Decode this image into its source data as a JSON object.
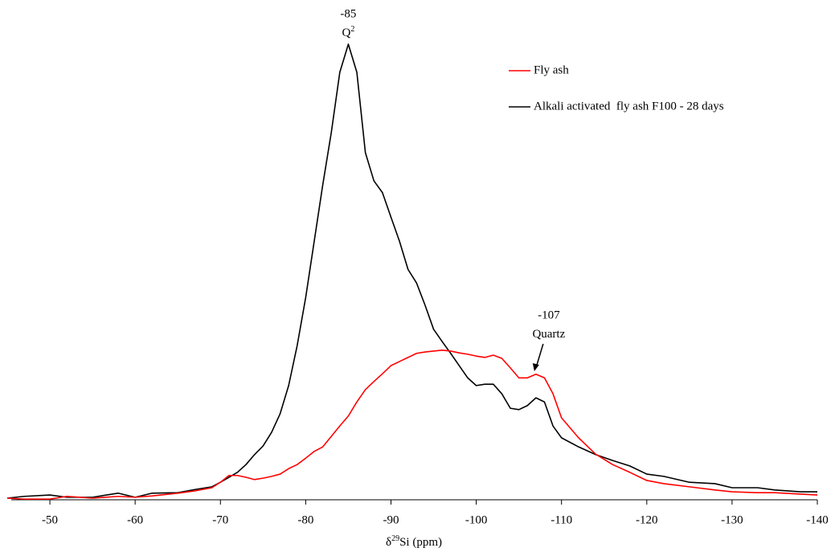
{
  "chart_data": {
    "type": "line",
    "x_label": {
      "prefix": "δ",
      "sup": "29",
      "main": "Si (ppm)"
    },
    "xlim": [
      -45,
      -140
    ],
    "xticks": [
      -50,
      -60,
      -70,
      -80,
      -90,
      -100,
      -110,
      -120,
      -130,
      -140
    ],
    "legend": "upper right",
    "x": [
      -45,
      -47,
      -50,
      -52,
      -55,
      -58,
      -60,
      -62,
      -65,
      -67,
      -69,
      -70,
      -71,
      -72,
      -73,
      -74,
      -75,
      -76,
      -77,
      -78,
      -79,
      -80,
      -81,
      -82,
      -83,
      -84,
      -85,
      -86,
      -87,
      -88,
      -89,
      -90,
      -91,
      -92,
      -93,
      -94,
      -95,
      -96,
      -97,
      -98,
      -99,
      -100,
      -101,
      -102,
      -103,
      -104,
      -105,
      -106,
      -107,
      -108,
      -109,
      -110,
      -112,
      -114,
      -116,
      -118,
      -120,
      -122,
      -125,
      -128,
      -130,
      -133,
      -135,
      -138,
      -140
    ],
    "series": [
      {
        "name": "Fly ash",
        "color": "#ff0000",
        "values": [
          0,
          -0.2,
          -0.2,
          0.4,
          0,
          0.4,
          0.2,
          0.5,
          1.1,
          1.6,
          2.3,
          3.5,
          5.0,
          5.0,
          4.6,
          4.1,
          4.4,
          4.8,
          5.3,
          6.5,
          7.4,
          8.8,
          10.3,
          11.3,
          13.6,
          15.9,
          18.1,
          21.2,
          23.9,
          25.7,
          27.4,
          29.2,
          30.1,
          31.0,
          31.9,
          32.2,
          32.4,
          32.6,
          32.4,
          32.0,
          31.7,
          31.3,
          31.0,
          31.5,
          30.8,
          28.7,
          26.5,
          26.5,
          27.3,
          26.5,
          23.0,
          17.7,
          13.3,
          9.7,
          7.4,
          5.7,
          3.9,
          3.2,
          2.5,
          1.8,
          1.4,
          1.2,
          1.2,
          0.9,
          0.7
        ]
      },
      {
        "name": "Alkali activated  fly ash F100 - 28 days",
        "color": "#000000",
        "values": [
          0,
          0.4,
          0.7,
          0.2,
          0.2,
          1.1,
          0.2,
          1.1,
          1.2,
          1.9,
          2.5,
          3.5,
          4.6,
          5.7,
          7.4,
          9.6,
          11.5,
          14.5,
          18.6,
          24.8,
          33.6,
          44.2,
          56.6,
          69.0,
          80.5,
          93.8,
          100,
          93.8,
          76.1,
          69.9,
          67.3,
          61.9,
          56.6,
          50.4,
          47.4,
          42.5,
          37.2,
          34.5,
          31.9,
          29.2,
          26.5,
          24.8,
          25.1,
          25.1,
          23.0,
          19.8,
          19.5,
          20.4,
          22.1,
          21.2,
          15.9,
          13.3,
          11.3,
          9.6,
          8.3,
          7.1,
          5.3,
          4.8,
          3.5,
          3.2,
          2.3,
          2.3,
          1.8,
          1.4,
          1.4
        ]
      }
    ],
    "annotations": [
      {
        "value": -85,
        "text": "Q",
        "sup": "2"
      },
      {
        "value": -107,
        "text": "Quartz"
      }
    ]
  }
}
